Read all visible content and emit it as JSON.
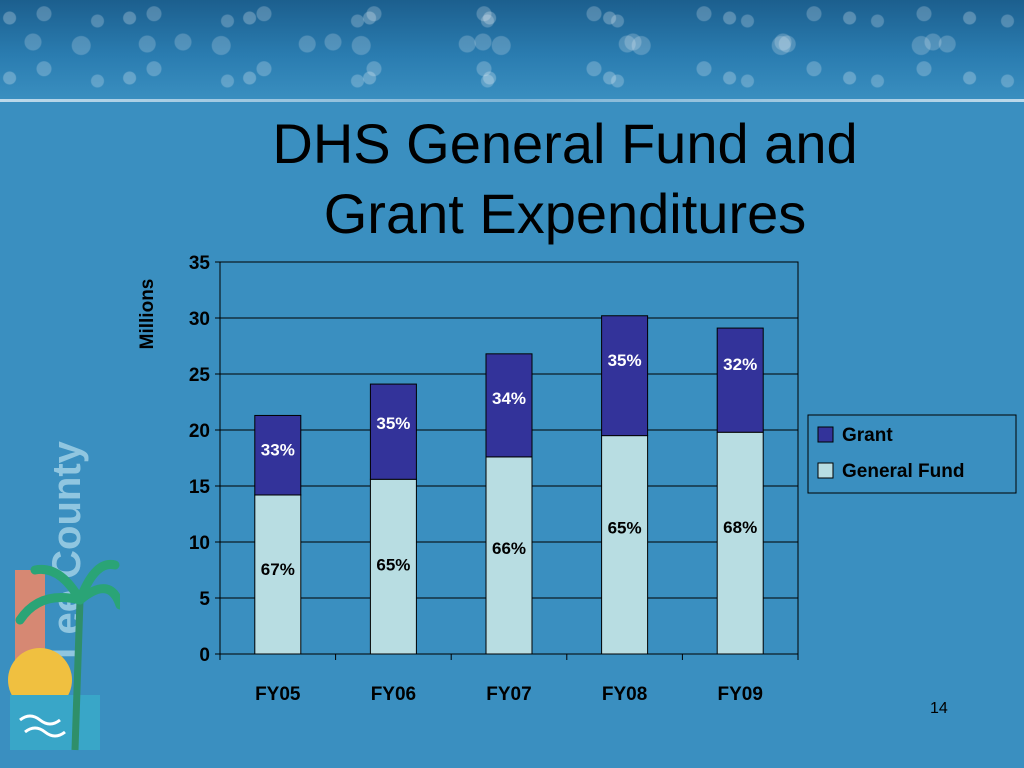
{
  "slide": {
    "number": "14"
  },
  "logo": {
    "text": "Lee County"
  },
  "chart_data": {
    "type": "bar",
    "stacked": true,
    "title": "DHS General Fund and Grant Expenditures",
    "title_lines": [
      "DHS General Fund and",
      "Grant Expenditures"
    ],
    "xlabel": "",
    "ylabel": "Millions",
    "ylim": [
      0,
      35
    ],
    "yticks": [
      0,
      5,
      10,
      15,
      20,
      25,
      30,
      35
    ],
    "grid": true,
    "legend_position": "right",
    "categories": [
      "FY05",
      "FY06",
      "FY07",
      "FY08",
      "FY09"
    ],
    "series": [
      {
        "name": "General Fund",
        "color": "#b8dde2",
        "values": [
          14.2,
          15.6,
          17.6,
          19.5,
          19.8
        ],
        "labels": [
          "67%",
          "65%",
          "66%",
          "65%",
          "68%"
        ]
      },
      {
        "name": "Grant",
        "color": "#33339a",
        "values": [
          7.1,
          8.5,
          9.2,
          10.7,
          9.3
        ],
        "labels": [
          "33%",
          "35%",
          "34%",
          "35%",
          "32%"
        ]
      }
    ],
    "legend_order": [
      "Grant",
      "General Fund"
    ]
  }
}
